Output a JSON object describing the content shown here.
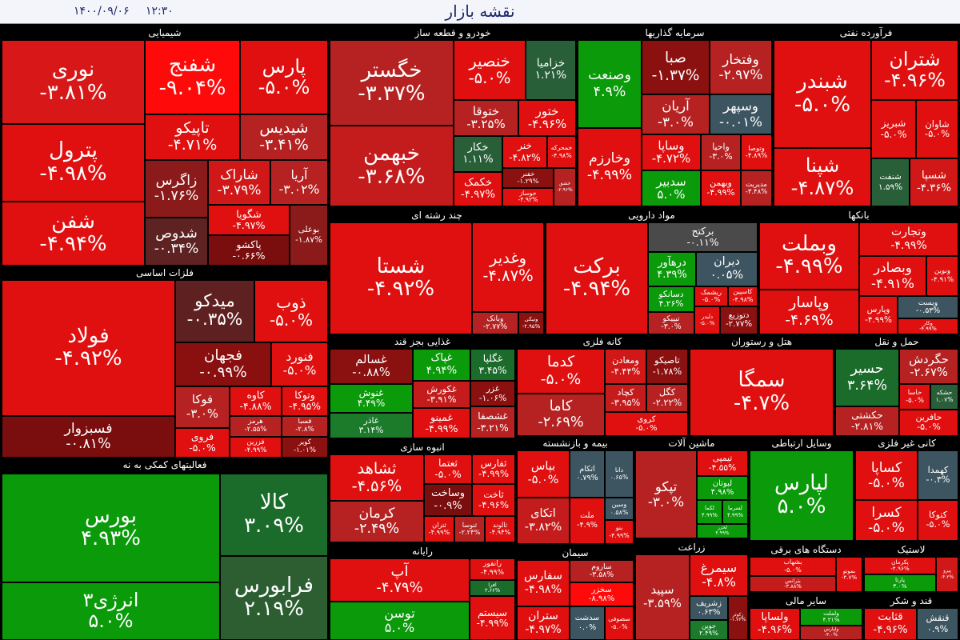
{
  "header": {
    "title": "نقشه بازار",
    "time": "۱۲:۳۰",
    "date": "۱۴۰۰/۰۹/۰۶"
  },
  "sectors": [
    {
      "title": "شیمیایی",
      "tiles": [
        {
          "name": "نوری",
          "change": "-۳.۸۱%",
          "color": "#d81818"
        },
        {
          "name": "پترول",
          "change": "-۴.۹۸%",
          "color": "#e01010"
        },
        {
          "name": "شفن",
          "change": "-۴.۹۴%",
          "color": "#e01010"
        },
        {
          "name": "شفنج",
          "change": "-۹.۰۴%",
          "color": "#ff0a0a"
        },
        {
          "name": "پارس",
          "change": "-۵.۰%",
          "color": "#e01010"
        },
        {
          "name": "تاپیکو",
          "change": "-۴.۷۱%",
          "color": "#e01010"
        },
        {
          "name": "شیدیس",
          "change": "-۳.۴۱%",
          "color": "#b62222"
        },
        {
          "name": "زاگرس",
          "change": "-۱.۷۶%",
          "color": "#8b1a1a"
        },
        {
          "name": "شاراک",
          "change": "-۳.۷۹%",
          "color": "#d01818"
        },
        {
          "name": "آریا",
          "change": "-۳.۰۲%",
          "color": "#b62222"
        },
        {
          "name": "شدوص",
          "change": "-۰.۳۴%",
          "color": "#5e2222"
        },
        {
          "name": "شگویا",
          "change": "-۴.۹۷%",
          "color": "#e01010"
        },
        {
          "name": "پاکشو",
          "change": "-۰.۶۶%",
          "color": "#7a0d0d"
        },
        {
          "name": "بوعلی",
          "change": "-۱.۸۷%",
          "color": "#8b1a1a"
        }
      ]
    },
    {
      "title": "فلزات اساسی",
      "tiles": [
        {
          "name": "فولاد",
          "change": "-۴.۹۲%",
          "color": "#e01010"
        },
        {
          "name": "فسبزوار",
          "change": "-۰.۸۱%",
          "color": "#7a0d0d"
        },
        {
          "name": "میدکو",
          "change": "-۰.۳۵%",
          "color": "#5e2020"
        },
        {
          "name": "ذوب",
          "change": "-۵.۰%",
          "color": "#e01010"
        },
        {
          "name": "فجهان",
          "change": "-۰.۹۹%",
          "color": "#8a0f0f"
        },
        {
          "name": "فنورد",
          "change": "-۵.۰%",
          "color": "#e01010"
        },
        {
          "name": "فوکا",
          "change": "-۳.۰%",
          "color": "#b62222"
        },
        {
          "name": "کاوه",
          "change": "-۴.۸۸%",
          "color": "#e01010"
        },
        {
          "name": "وتوکا",
          "change": "-۴.۹۵%",
          "color": "#e01010"
        },
        {
          "name": "هرمز",
          "change": "-۲.۵۵%",
          "color": "#b62222"
        },
        {
          "name": "فسبا",
          "change": "-۲.۸%",
          "color": "#b62222"
        },
        {
          "name": "فروی",
          "change": "-۵.۰%",
          "color": "#e01010"
        },
        {
          "name": "فزرین",
          "change": "-۴.۹۹%",
          "color": "#e01010"
        },
        {
          "name": "کویر",
          "change": "-۱.۰۱%",
          "color": "#8b1010"
        }
      ]
    },
    {
      "title": "فعالیتهای کمکی به نه",
      "tiles": [
        {
          "name": "بورس",
          "change": "۴.۹۳%",
          "color": "#0a9a0a"
        },
        {
          "name": "انرژی۳",
          "change": "۵.۰%",
          "color": "#0a9a0a"
        },
        {
          "name": "کالا",
          "change": "۳.۰۹%",
          "color": "#1b6b2b"
        },
        {
          "name": "فرابورس",
          "change": "۲.۱۹%",
          "color": "#2c5e32"
        }
      ]
    },
    {
      "title": "خودرو و قطعه ساز",
      "tiles": [
        {
          "name": "خگستر",
          "change": "-۳.۳۷%",
          "color": "#b62222"
        },
        {
          "name": "خبهمن",
          "change": "-۳.۶۸%",
          "color": "#c41c1c"
        },
        {
          "name": "خنصیر",
          "change": "-۵.۰%",
          "color": "#e01010"
        },
        {
          "name": "خزامیا",
          "change": "۱.۲۱%",
          "color": "#285e38"
        },
        {
          "name": "ختوقا",
          "change": "-۳.۲۵%",
          "color": "#b62222"
        },
        {
          "name": "ختور",
          "change": "-۴.۹۶%",
          "color": "#e01010"
        },
        {
          "name": "خکار",
          "change": "۱.۱۱%",
          "color": "#285e38"
        },
        {
          "name": "خکمک",
          "change": "-۴.۹۷%",
          "color": "#e01010"
        },
        {
          "name": "خنر",
          "change": "-۴.۸۲%",
          "color": "#e01010"
        },
        {
          "name": "خمحرکه",
          "change": "-۴.۹۸%",
          "color": "#e01010"
        },
        {
          "name": "خفنر",
          "change": "-۱.۲۹%",
          "color": "#8b1010"
        },
        {
          "name": "خوساز",
          "change": "-۴.۹۲%",
          "color": "#e01010"
        },
        {
          "name": "خشق",
          "change": "-۲.۹۶%",
          "color": "#b62222"
        }
      ]
    },
    {
      "title": "سرمایه گذاریها",
      "tiles": [
        {
          "name": "وصنعت",
          "change": "۴.۹%",
          "color": "#0a9a0a"
        },
        {
          "name": "وخارزم",
          "change": "-۴.۹۹%",
          "color": "#e01010"
        },
        {
          "name": "صبا",
          "change": "-۱.۳۷%",
          "color": "#8b1010"
        },
        {
          "name": "وفتخار",
          "change": "-۲.۹۷%",
          "color": "#b62222"
        },
        {
          "name": "آریان",
          "change": "-۳.۰%",
          "color": "#b62222"
        },
        {
          "name": "وسپهر",
          "change": "-۰.۰۱%",
          "color": "#3d5560"
        },
        {
          "name": "وساپا",
          "change": "-۴.۷۲%",
          "color": "#e01010"
        },
        {
          "name": "واحیا",
          "change": "-۳.۰%",
          "color": "#b62222"
        },
        {
          "name": "وتوصا",
          "change": "-۴.۸۹%",
          "color": "#e01010"
        },
        {
          "name": "سدبیر",
          "change": "۵.۰%",
          "color": "#0a9a0a"
        },
        {
          "name": "وبهمن",
          "change": "-۴.۹۹%",
          "color": "#e01010"
        },
        {
          "name": "مدیریت",
          "change": "-۳.۴۸%",
          "color": "#b62222"
        }
      ]
    },
    {
      "title": "فرآورده نفتی",
      "tiles": [
        {
          "name": "شبندر",
          "change": "-۵.۰%",
          "color": "#e01010"
        },
        {
          "name": "شپنا",
          "change": "-۴.۸۷%",
          "color": "#e01010"
        },
        {
          "name": "شتران",
          "change": "-۴.۹۶%",
          "color": "#e01010"
        },
        {
          "name": "شبریز",
          "change": "-۵.۰%",
          "color": "#e01010"
        },
        {
          "name": "شاوان",
          "change": "-۵.۰%",
          "color": "#e01010"
        },
        {
          "name": "شنفت",
          "change": "۱.۵۹%",
          "color": "#285e38"
        },
        {
          "name": "شسپا",
          "change": "-۴.۳۶%",
          "color": "#d01818"
        }
      ]
    },
    {
      "title": "چند رشته ای",
      "tiles": [
        {
          "name": "شستا",
          "change": "-۴.۹۲%",
          "color": "#e01010"
        },
        {
          "name": "وغدیر",
          "change": "-۴.۸۷%",
          "color": "#e01010"
        },
        {
          "name": "وبانک",
          "change": "-۲.۷۷%",
          "color": "#b62222"
        },
        {
          "name": "ونیکی",
          "change": "-۲.۹۵%",
          "color": "#8b1010"
        }
      ]
    },
    {
      "title": "مواد دارویی",
      "tiles": [
        {
          "name": "برکت",
          "change": "-۴.۹۴%",
          "color": "#e01010"
        },
        {
          "name": "برکتح",
          "change": "-۰.۱۱%",
          "color": "#4a4a4a"
        },
        {
          "name": "درهآور",
          "change": "۴.۳۹%",
          "color": "#0a9a0a"
        },
        {
          "name": "دیران",
          "change": "۰.۰۵%",
          "color": "#3d5560"
        },
        {
          "name": "دسانکو",
          "change": "۴.۲۶%",
          "color": "#0a9a0a"
        },
        {
          "name": "ریشمک",
          "change": "-۵.۰%",
          "color": "#e01010"
        },
        {
          "name": "کاسپین",
          "change": "-۴.۹۸%",
          "color": "#e01010"
        },
        {
          "name": "تیپیکو",
          "change": "-۳.۰%",
          "color": "#b62222"
        },
        {
          "name": "دلبدر",
          "change": "-۵.۰%",
          "color": "#e01010"
        },
        {
          "name": "دتوزیع",
          "change": "-۲.۷۷%",
          "color": "#8b1010"
        }
      ]
    },
    {
      "title": "بانکها",
      "tiles": [
        {
          "name": "وبملت",
          "change": "-۴.۹۹%",
          "color": "#e01010"
        },
        {
          "name": "وپاسار",
          "change": "-۴.۶۹%",
          "color": "#e01010"
        },
        {
          "name": "وتجارت",
          "change": "-۴.۹۹%",
          "color": "#e01010"
        },
        {
          "name": "وبصادر",
          "change": "-۴.۹۱%",
          "color": "#e01010"
        },
        {
          "name": "ونوین",
          "change": "-۴.۹۱%",
          "color": "#e01010"
        },
        {
          "name": "وپارس",
          "change": "-۴.۹۹%",
          "color": "#e01010"
        },
        {
          "name": "ویست",
          "change": "-۰.۵۳%",
          "color": "#3d5560"
        },
        {
          "name": "وکار",
          "change": "-۴.۹۹%",
          "color": "#e01010"
        }
      ]
    },
    {
      "title": "غذایی بجز قند",
      "tiles": [
        {
          "name": "غسالم",
          "change": "-۰.۸۸%",
          "color": "#8b1010"
        },
        {
          "name": "غنوش",
          "change": "۴.۴۹%",
          "color": "#0a9a0a"
        },
        {
          "name": "غاذر",
          "change": "۳.۱۴%",
          "color": "#1b7b2b"
        },
        {
          "name": "غپاک",
          "change": "۴.۹۴%",
          "color": "#0a9a0a"
        },
        {
          "name": "غگلپا",
          "change": "۳.۴۵%",
          "color": "#1b6b2b"
        },
        {
          "name": "غکورش",
          "change": "-۳.۹۱%",
          "color": "#c41c1c"
        },
        {
          "name": "غزر",
          "change": "-۱.۰۶%",
          "color": "#8b1010"
        },
        {
          "name": "غمینو",
          "change": "-۴.۹۹%",
          "color": "#e01010"
        },
        {
          "name": "غشصفا",
          "change": "-۳.۲۱%",
          "color": "#b62222"
        }
      ]
    },
    {
      "title": "کانه فلزی",
      "tiles": [
        {
          "name": "کدما",
          "change": "-۵.۰%",
          "color": "#e01010"
        },
        {
          "name": "کاما",
          "change": "-۲.۶۹%",
          "color": "#b62222"
        },
        {
          "name": "ومعادن",
          "change": "-۴.۴۴%",
          "color": "#d01818"
        },
        {
          "name": "تاصیکو",
          "change": "-۱.۷۸%",
          "color": "#8b1010"
        },
        {
          "name": "کچاد",
          "change": "-۳.۹۵%",
          "color": "#c41c1c"
        },
        {
          "name": "کگل",
          "change": "-۲.۲۲%",
          "color": "#b62222"
        },
        {
          "name": "کروی",
          "change": "-۵.۰%",
          "color": "#e01010"
        }
      ]
    },
    {
      "title": "هتل و رستوران",
      "tiles": [
        {
          "name": "سمگا",
          "change": "-۴.۷%",
          "color": "#e01010"
        }
      ]
    },
    {
      "title": "حمل و نقل",
      "tiles": [
        {
          "name": "حسیر",
          "change": "۳.۶۴%",
          "color": "#1b6b2b"
        },
        {
          "name": "حکشتی",
          "change": "-۲.۸۱%",
          "color": "#b62222"
        },
        {
          "name": "حگردش",
          "change": "-۲.۶۷%",
          "color": "#b62222"
        },
        {
          "name": "حاسا",
          "change": "-۵.۰%",
          "color": "#e01010"
        },
        {
          "name": "حشکه",
          "change": "۱.۰۷%",
          "color": "#285e38"
        },
        {
          "name": "حافرین",
          "change": "-۵.۰%",
          "color": "#e01010"
        }
      ]
    },
    {
      "title": "انبوه سازی",
      "tiles": [
        {
          "name": "ثشاهد",
          "change": "-۴.۵۶%",
          "color": "#e01010"
        },
        {
          "name": "کرمان",
          "change": "-۲.۴۹%",
          "color": "#b62222"
        },
        {
          "name": "ثعتما",
          "change": "-۵.۰%",
          "color": "#e01010"
        },
        {
          "name": "ثفارس",
          "change": "-۴.۹۹%",
          "color": "#e01010"
        },
        {
          "name": "وساخت",
          "change": "-۰.۹%",
          "color": "#7a0d0d"
        },
        {
          "name": "ثاخت",
          "change": "-۴.۹۶%",
          "color": "#e01010"
        },
        {
          "name": "ثتران",
          "change": "-۴.۹۹%",
          "color": "#e01010"
        },
        {
          "name": "ثنوسا",
          "change": "-۲.۲۴%",
          "color": "#b62222"
        },
        {
          "name": "ثالوند",
          "change": "-۴.۹۴%",
          "color": "#e01010"
        }
      ]
    },
    {
      "title": "رایانه",
      "tiles": [
        {
          "name": "آپ",
          "change": "-۴.۷۹%",
          "color": "#e01010"
        },
        {
          "name": "توسن",
          "change": "۵.۰%",
          "color": "#0a9a0a"
        },
        {
          "name": "رانفور",
          "change": "-۴.۹۹%",
          "color": "#e01010"
        },
        {
          "name": "افرا",
          "change": "۳.۶۶%",
          "color": "#1b6b2b"
        },
        {
          "name": "سیستم",
          "change": "-۴.۹۹%",
          "color": "#e01010"
        }
      ]
    },
    {
      "title": "بیمه و بازنشسته",
      "tiles": [
        {
          "name": "بپاس",
          "change": "-۵.۰%",
          "color": "#e01010"
        },
        {
          "name": "اتکای",
          "change": "-۳.۸۲%",
          "color": "#c41c1c"
        },
        {
          "name": "اتکام",
          "change": "۰.۷۹%",
          "color": "#3d5560"
        },
        {
          "name": "دانا",
          "change": "۰.۶۵%",
          "color": "#3d5560"
        },
        {
          "name": "ملت",
          "change": "-۴.۹%",
          "color": "#e01010"
        },
        {
          "name": "وسین",
          "change": "۰.۵۸%",
          "color": "#3d5560"
        },
        {
          "name": "بنو",
          "change": "-۴.۹۹%",
          "color": "#e01010"
        }
      ]
    },
    {
      "title": "ماشین آلات",
      "tiles": [
        {
          "name": "تپکو",
          "change": "-۳.۰%",
          "color": "#b62222"
        },
        {
          "name": "تیمپی",
          "change": "-۴.۵۵%",
          "color": "#e01010"
        },
        {
          "name": "لبوتان",
          "change": "۴.۹۸%",
          "color": "#0a9a0a"
        },
        {
          "name": "لکما",
          "change": "۴.۹۹%",
          "color": "#0a9a0a"
        },
        {
          "name": "لسرما",
          "change": "۴.۹۹%",
          "color": "#0a9a0a"
        },
        {
          "name": "لخزر",
          "change": "۴.۹۹%",
          "color": "#0a9a0a"
        }
      ]
    },
    {
      "title": "سیمان",
      "tiles": [
        {
          "name": "سفارس",
          "change": "-۴.۹۸%",
          "color": "#e01010"
        },
        {
          "name": "ستران",
          "change": "-۴.۹۷%",
          "color": "#e01010"
        },
        {
          "name": "ساروم",
          "change": "-۳.۵۸%",
          "color": "#b62222"
        },
        {
          "name": "سخزر",
          "change": "-۸.۹۸%",
          "color": "#ff0a0a"
        },
        {
          "name": "سدشت",
          "change": "۰.۰%",
          "color": "#3d5560"
        },
        {
          "name": "سصوفی",
          "change": "-۵.۰%",
          "color": "#e01010"
        }
      ]
    },
    {
      "title": "زراعت",
      "tiles": [
        {
          "name": "سپید",
          "change": "-۳.۵۹%",
          "color": "#b62222"
        },
        {
          "name": "سیمرغ",
          "change": "-۴.۸%",
          "color": "#e01010"
        },
        {
          "name": "زشریف",
          "change": "۰.۶۳%",
          "color": "#3d5560"
        },
        {
          "name": "زکوثر",
          "change": "-۱.۷۶%",
          "color": "#8b1010"
        },
        {
          "name": "جوین",
          "change": "۲.۴۹%",
          "color": "#1b7b2b"
        }
      ]
    },
    {
      "title": "وسایل ارتباطی",
      "tiles": [
        {
          "name": "لپارس",
          "change": "۵.۰%",
          "color": "#0a9a0a"
        }
      ]
    },
    {
      "title": "کانی غیر فلزی",
      "tiles": [
        {
          "name": "کساپا",
          "change": "-۵.۰%",
          "color": "#e01010"
        },
        {
          "name": "کسرا",
          "change": "-۵.۰%",
          "color": "#e01010"
        },
        {
          "name": "کهمدا",
          "change": "-۰.۳%",
          "color": "#3d5560"
        },
        {
          "name": "کتوکا",
          "change": "-۵.۰%",
          "color": "#e01010"
        }
      ]
    },
    {
      "title": "دستگاه های برقی",
      "tiles": [
        {
          "name": "بشهاب",
          "change": "-۵.۰%",
          "color": "#e01010"
        },
        {
          "name": "بترانس",
          "change": "-۳.۸۸%",
          "color": "#c41c1c"
        },
        {
          "name": "بموتو",
          "change": "-۴.۷%",
          "color": "#e01010"
        }
      ]
    },
    {
      "title": "سایر مالی",
      "tiles": [
        {
          "name": "ولساپا",
          "change": "-۴.۹۶%",
          "color": "#e01010"
        },
        {
          "name": "ولملت",
          "change": "۴.۲۱%",
          "color": "#0a9a0a"
        },
        {
          "name": "ولپارس",
          "change": "-۳.۰%",
          "color": "#b62222"
        }
      ]
    },
    {
      "title": "لاستیک",
      "tiles": [
        {
          "name": "پکرمان",
          "change": "-۴.۹۶%",
          "color": "#e01010"
        },
        {
          "name": "پارتا",
          "change": "۳.۰%",
          "color": "#0a9a0a"
        },
        {
          "name": "پیرو",
          "change": "-۴.۲%",
          "color": "#d01818"
        }
      ]
    },
    {
      "title": "قند و شکر",
      "tiles": [
        {
          "name": "قثابت",
          "change": "-۴.۹۶%",
          "color": "#e01010"
        },
        {
          "name": "قنقش",
          "change": "۰.۹%",
          "color": "#3d5560"
        }
      ]
    }
  ]
}
